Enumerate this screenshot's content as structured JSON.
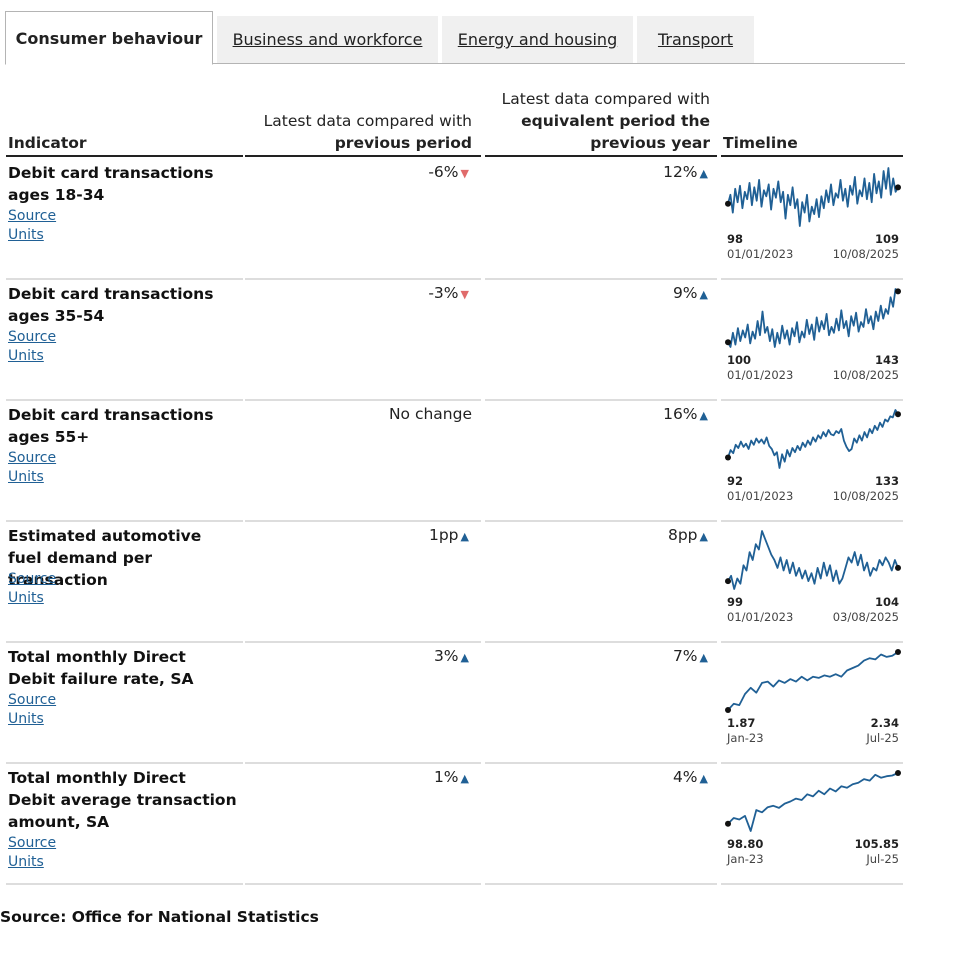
{
  "tabs": [
    {
      "label": "Consumer behaviour",
      "active": true
    },
    {
      "label": "Business and workforce",
      "active": false
    },
    {
      "label": "Energy and housing",
      "active": false
    },
    {
      "label": "Transport",
      "active": false
    }
  ],
  "headers": {
    "indicator": "Indicator",
    "prev_line1": "Latest data compared with",
    "prev_line2": "previous period",
    "year_line1": "Latest data compared with",
    "year_line2": "equivalent period the",
    "year_line3": "previous year",
    "timeline": "Timeline"
  },
  "colors": {
    "line": "#206095",
    "up": "#206095",
    "down": "#e06b6b",
    "rule": "#dddddd"
  },
  "rows": [
    {
      "title": "Debit card transactions ages 18-34",
      "source": "Source",
      "units": "Units",
      "prev": "-6%",
      "prev_dir": "down",
      "year": "12%",
      "year_dir": "up",
      "start_value": "98",
      "end_value": "109",
      "start_date": "01/01/2023",
      "end_date": "10/08/2025",
      "series": [
        98,
        104,
        92,
        108,
        99,
        110,
        95,
        106,
        101,
        112,
        97,
        109,
        100,
        114,
        96,
        107,
        103,
        111,
        94,
        108,
        102,
        113,
        99,
        106,
        88,
        104,
        97,
        109,
        95,
        101,
        83,
        99,
        92,
        104,
        86,
        96,
        91,
        101,
        89,
        103,
        95,
        107,
        99,
        111,
        97,
        105,
        102,
        114,
        100,
        108,
        96,
        110,
        104,
        116,
        98,
        107,
        103,
        115,
        101,
        112,
        99,
        118,
        105,
        113,
        102,
        120,
        108,
        122,
        104,
        115,
        106,
        109
      ]
    },
    {
      "title": "Debit card transactions ages 35-54",
      "source": "Source",
      "units": "Units",
      "prev": "-3%",
      "prev_dir": "down",
      "year": "9%",
      "year_dir": "up",
      "start_value": "100",
      "end_value": "143",
      "start_date": "01/01/2023",
      "end_date": "10/08/2025",
      "series": [
        100,
        96,
        108,
        98,
        112,
        101,
        110,
        104,
        115,
        99,
        109,
        103,
        118,
        106,
        126,
        108,
        113,
        101,
        111,
        96,
        108,
        99,
        114,
        103,
        110,
        98,
        112,
        105,
        117,
        100,
        109,
        104,
        119,
        107,
        115,
        102,
        121,
        109,
        118,
        111,
        124,
        106,
        113,
        108,
        120,
        110,
        127,
        112,
        118,
        105,
        122,
        114,
        125,
        109,
        117,
        113,
        128,
        116,
        122,
        111,
        126,
        118,
        131,
        120,
        128,
        124,
        138,
        130,
        145,
        143
      ]
    },
    {
      "title": "Debit card transactions ages 55+",
      "source": "Source",
      "units": "Units",
      "prev": "No change",
      "prev_dir": "none",
      "year": "16%",
      "year_dir": "up",
      "start_value": "92",
      "end_value": "133",
      "start_date": "01/01/2023",
      "end_date": "10/08/2025",
      "series": [
        92,
        99,
        96,
        104,
        101,
        107,
        102,
        105,
        100,
        108,
        104,
        110,
        106,
        109,
        105,
        111,
        103,
        100,
        94,
        97,
        82,
        95,
        88,
        99,
        93,
        101,
        97,
        103,
        99,
        106,
        102,
        108,
        104,
        111,
        107,
        113,
        110,
        116,
        112,
        118,
        114,
        113,
        117,
        115,
        119,
        108,
        102,
        98,
        100,
        110,
        106,
        113,
        108,
        116,
        111,
        119,
        115,
        122,
        118,
        125,
        121,
        128,
        126,
        131,
        130,
        137,
        133
      ]
    },
    {
      "title": "Estimated automotive fuel demand per transaction",
      "source": "Source",
      "units": "Units",
      "prev": "1pp",
      "prev_dir": "up",
      "year": "8pp",
      "year_dir": "up",
      "start_value": "99",
      "end_value": "104",
      "start_date": "01/01/2023",
      "end_date": "03/08/2025",
      "series": [
        99,
        101,
        96,
        100,
        98,
        105,
        103,
        110,
        107,
        113,
        111,
        118,
        115,
        112,
        109,
        107,
        104,
        108,
        103,
        107,
        102,
        106,
        101,
        104,
        100,
        103,
        99,
        102,
        98,
        104,
        100,
        106,
        101,
        105,
        99,
        103,
        98,
        100,
        104,
        108,
        106,
        110,
        105,
        109,
        103,
        106,
        101,
        104,
        103,
        107,
        105,
        108,
        106,
        103,
        107,
        104
      ]
    },
    {
      "title": "Total monthly Direct Debit failure rate, SA",
      "source": "Source",
      "units": "Units",
      "prev": "3%",
      "prev_dir": "up",
      "year": "7%",
      "year_dir": "up",
      "start_value": "1.87",
      "end_value": "2.34",
      "start_date": "Jan-23",
      "end_date": "Jul-25",
      "series": [
        1.87,
        1.92,
        1.91,
        2.0,
        2.05,
        2.01,
        2.09,
        2.1,
        2.06,
        2.11,
        2.09,
        2.12,
        2.1,
        2.14,
        2.11,
        2.14,
        2.13,
        2.15,
        2.14,
        2.16,
        2.14,
        2.19,
        2.21,
        2.23,
        2.27,
        2.29,
        2.28,
        2.32,
        2.3,
        2.31,
        2.34
      ]
    },
    {
      "title": "Total monthly Direct Debit average transaction amount, SA",
      "source": "Source",
      "units": "Units",
      "prev": "1%",
      "prev_dir": "up",
      "year": "4%",
      "year_dir": "up",
      "start_value": "98.80",
      "end_value": "105.85",
      "start_date": "Jan-23",
      "end_date": "Jul-25",
      "series": [
        98.8,
        99.6,
        99.4,
        99.9,
        97.8,
        100.7,
        100.4,
        101.1,
        101.3,
        101.0,
        101.6,
        101.9,
        102.3,
        102.1,
        102.9,
        102.6,
        103.4,
        102.9,
        103.7,
        103.3,
        104.0,
        103.8,
        104.3,
        104.5,
        105.0,
        104.8,
        105.6,
        105.2,
        105.4,
        105.5,
        105.85
      ]
    }
  ],
  "footer": "Source: Office for National Statistics"
}
